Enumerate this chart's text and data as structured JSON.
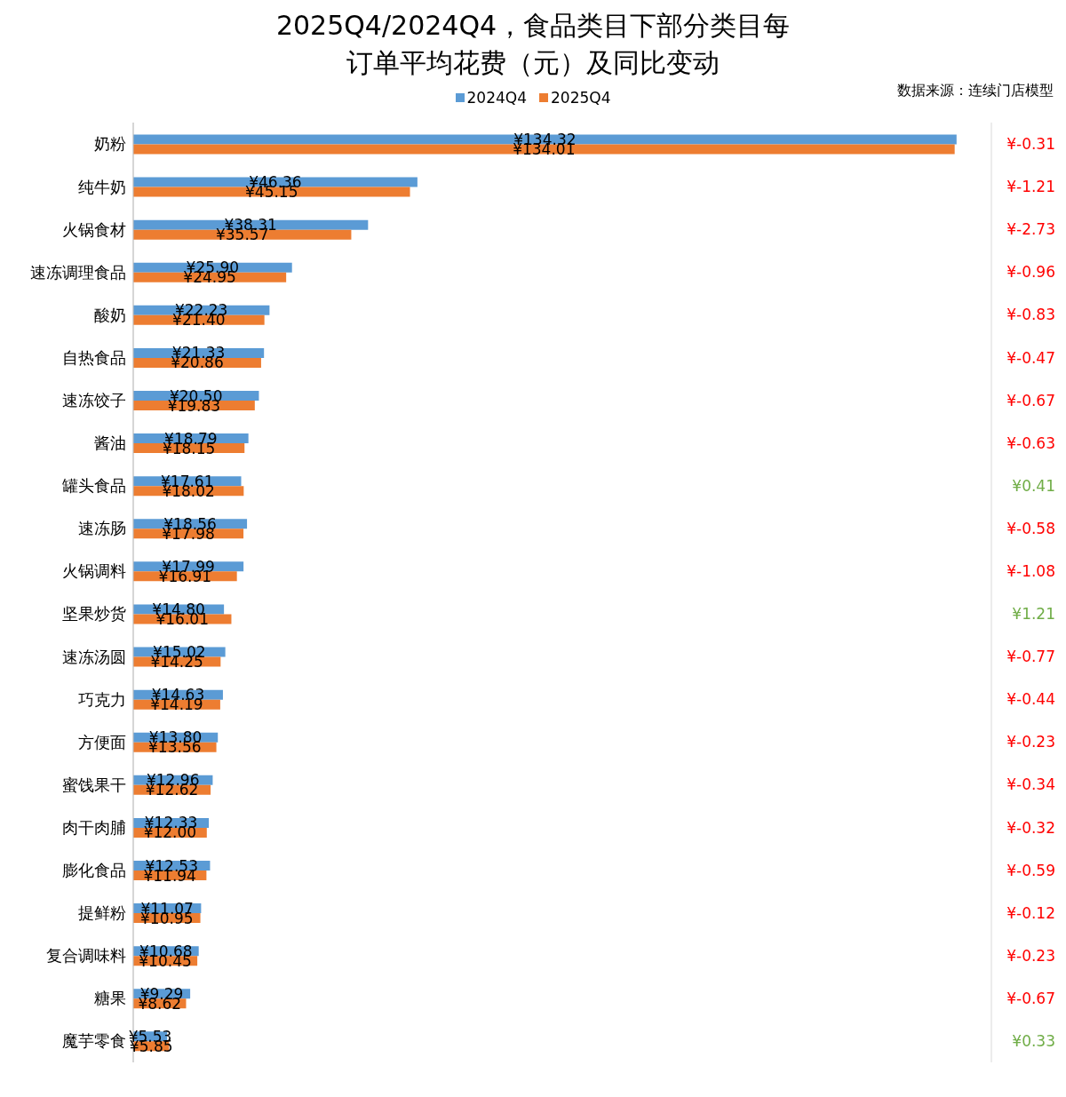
{
  "chart_data": {
    "type": "bar",
    "orientation": "horizontal",
    "title": "2025Q4/2024Q4，食品类目下部分类目每订单平均花费（元）及同比变动",
    "categories": [
      "奶粉",
      "纯牛奶",
      "火锅食材",
      "速冻调理食品",
      "酸奶",
      "自热食品",
      "速冻饺子",
      "酱油",
      "罐头食品",
      "速冻肠",
      "火锅调料",
      "坚果炒货",
      "速冻汤圆",
      "巧克力",
      "方便面",
      "蜜饯果干",
      "肉干肉脯",
      "膨化食品",
      "提鲜粉",
      "复合调味料",
      "糖果",
      "魔芋零食"
    ],
    "series": [
      {
        "name": "2024Q4",
        "color": "#5b9bd5",
        "values": [
          134.32,
          46.36,
          38.31,
          25.9,
          22.23,
          21.33,
          20.5,
          18.79,
          17.61,
          18.56,
          17.99,
          14.8,
          15.02,
          14.63,
          13.8,
          12.96,
          12.33,
          12.53,
          11.07,
          10.68,
          9.29,
          5.53
        ],
        "value_labels": [
          "¥134.32",
          "¥46.36",
          "¥38.31",
          "¥25.90",
          "¥22.23",
          "¥21.33",
          "¥20.50",
          "¥18.79",
          "¥17.61",
          "¥18.56",
          "¥17.99",
          "¥14.80",
          "¥15.02",
          "¥14.63",
          "¥13.80",
          "¥12.96",
          "¥12.33",
          "¥12.53",
          "¥11.07",
          "¥10.68",
          "¥9.29",
          "¥5.53"
        ]
      },
      {
        "name": "2025Q4",
        "color": "#ed7d31",
        "values": [
          134.01,
          45.15,
          35.57,
          24.95,
          21.4,
          20.86,
          19.83,
          18.15,
          18.02,
          17.98,
          16.91,
          16.01,
          14.25,
          14.19,
          13.56,
          12.62,
          12.0,
          11.94,
          10.95,
          10.45,
          8.62,
          5.85
        ],
        "value_labels": [
          "¥134.01",
          "¥45.15",
          "¥35.57",
          "¥24.95",
          "¥21.40",
          "¥20.86",
          "¥19.83",
          "¥18.15",
          "¥18.02",
          "¥17.98",
          "¥16.91",
          "¥16.01",
          "¥14.25",
          "¥14.19",
          "¥13.56",
          "¥12.62",
          "¥12.00",
          "¥11.94",
          "¥10.95",
          "¥10.45",
          "¥8.62",
          "¥5.85"
        ]
      }
    ],
    "xlim": [
      0,
      140
    ],
    "grid": "x",
    "legend": "top",
    "tick_labels": "y",
    "annotations": [
      "数据来源：连续门店模型",
      "¥-0.31",
      "¥-1.21",
      "¥-2.73",
      "¥-0.96",
      "¥-0.83",
      "¥-0.47",
      "¥-0.67",
      "¥-0.63",
      "¥0.41",
      "¥-0.58",
      "¥-1.08",
      "¥1.21",
      "¥-0.77",
      "¥-0.44",
      "¥-0.23",
      "¥-0.34",
      "¥-0.32",
      "¥-0.59",
      "¥-0.12",
      "¥-0.23",
      "¥-0.67",
      "¥0.33"
    ]
  }
}
